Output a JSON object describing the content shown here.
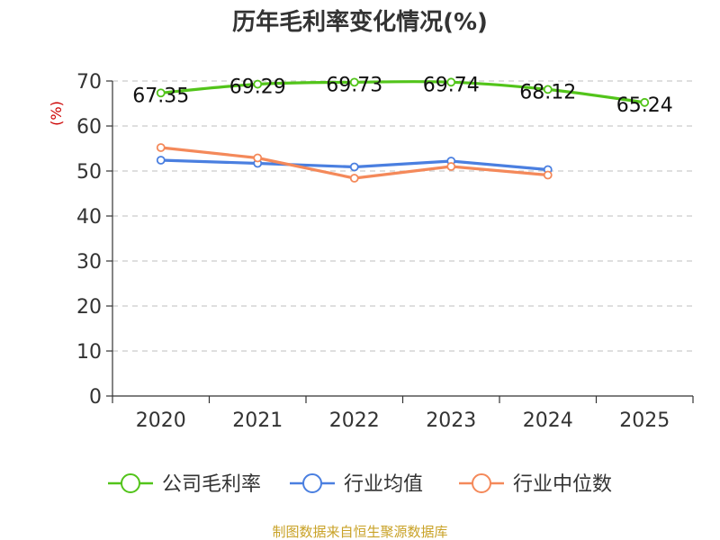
{
  "chart_data": {
    "type": "line",
    "title": "历年毛利率变化情况(%)",
    "ylabel": "(%)",
    "categories": [
      "2020",
      "2021",
      "2022",
      "2023",
      "2024",
      "2025"
    ],
    "ylim": [
      0,
      70
    ],
    "yticks": [
      "0",
      "10",
      "20",
      "30",
      "40",
      "50",
      "60",
      "70"
    ],
    "grid": true,
    "legend_position": "bottom",
    "series": [
      {
        "name": "公司毛利率",
        "color": "#52c41a",
        "values": [
          67.35,
          69.29,
          69.73,
          69.74,
          68.12,
          65.24
        ],
        "labels": [
          "67.35",
          "69.29",
          "69.73",
          "69.74",
          "68.12",
          "65.24"
        ]
      },
      {
        "name": "行业均值",
        "color": "#4a7fe0",
        "values": [
          52.4,
          51.7,
          50.9,
          52.2,
          50.3,
          null
        ]
      },
      {
        "name": "行业中位数",
        "color": "#f4895a",
        "values": [
          55.2,
          52.9,
          48.4,
          51.0,
          49.1,
          null
        ]
      }
    ]
  },
  "source": "制图数据来自恒生聚源数据库"
}
